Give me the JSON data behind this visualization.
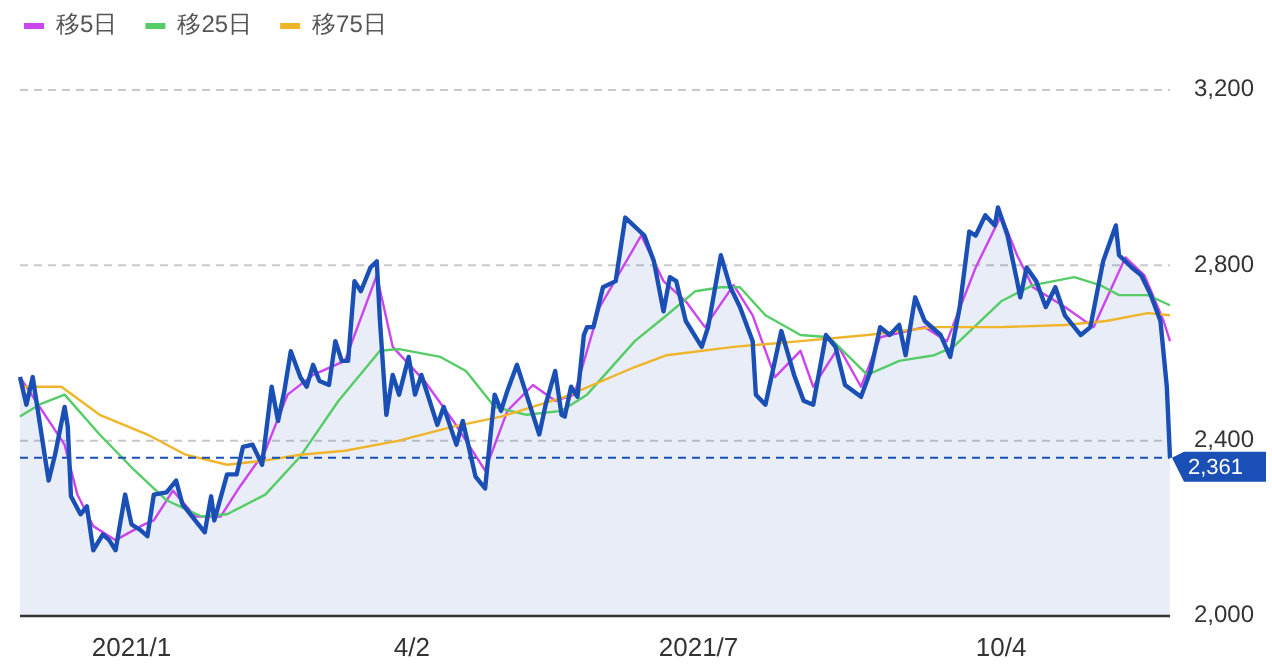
{
  "chart_data": {
    "type": "line",
    "xlim": [
      "2020-11-30",
      "2021-11-26"
    ],
    "ylim": [
      2000,
      3200
    ],
    "xticks": [
      {
        "value": "2021-01-04",
        "label": "2021/1"
      },
      {
        "value": "2021-04-02",
        "label": "4/2"
      },
      {
        "value": "2021-07-01",
        "label": "2021/7"
      },
      {
        "value": "2021-10-04",
        "label": "10/4"
      }
    ],
    "yticks": [
      {
        "value": 2000,
        "label": "2,000"
      },
      {
        "value": 2400,
        "label": "2,400"
      },
      {
        "value": 2800,
        "label": "2,800"
      },
      {
        "value": 3200,
        "label": "3,200"
      }
    ],
    "grid": "y",
    "legend": "top left",
    "ref_lines": [
      {
        "axis": "y",
        "value": 2361,
        "label": "2,361",
        "color": "#1a4fb5",
        "line_style": "dashed"
      }
    ],
    "series": [
      {
        "name": "移5日",
        "color": "#cc44ee",
        "x": [
          "2020-11-30",
          "2020-12-14",
          "2020-12-18",
          "2020-12-23",
          "2020-12-30",
          "2021-01-08",
          "2021-01-11",
          "2021-01-17",
          "2021-01-24",
          "2021-02-01",
          "2021-02-07",
          "2021-02-15",
          "2021-02-22",
          "2021-03-02",
          "2021-03-12",
          "2021-03-22",
          "2021-03-27",
          "2021-04-06",
          "2021-04-15",
          "2021-04-25",
          "2021-05-02",
          "2021-05-10",
          "2021-05-17",
          "2021-05-23",
          "2021-05-31",
          "2021-06-13",
          "2021-06-20",
          "2021-06-27",
          "2021-07-03",
          "2021-07-12",
          "2021-07-18",
          "2021-07-25",
          "2021-08-02",
          "2021-08-06",
          "2021-08-14",
          "2021-08-21",
          "2021-08-27",
          "2021-09-10",
          "2021-09-17",
          "2021-09-26",
          "2021-10-04",
          "2021-10-09",
          "2021-10-14",
          "2021-10-24",
          "2021-11-02",
          "2021-11-12",
          "2021-11-18",
          "2021-11-24",
          "2021-11-26"
        ],
        "values": [
          2545,
          2391,
          2277,
          2205,
          2173,
          2209,
          2218,
          2286,
          2227,
          2227,
          2295,
          2377,
          2505,
          2550,
          2582,
          2777,
          2614,
          2536,
          2445,
          2332,
          2468,
          2527,
          2491,
          2505,
          2705,
          2868,
          2764,
          2718,
          2659,
          2755,
          2686,
          2545,
          2605,
          2523,
          2614,
          2523,
          2636,
          2659,
          2627,
          2795,
          2914,
          2823,
          2750,
          2705,
          2659,
          2818,
          2777,
          2673,
          2627
        ]
      },
      {
        "name": "移25日",
        "color": "#55cc66",
        "x": [
          "2020-11-30",
          "2020-12-06",
          "2020-12-14",
          "2020-12-25",
          "2021-01-05",
          "2021-01-15",
          "2021-01-26",
          "2021-02-03",
          "2021-02-15",
          "2021-02-26",
          "2021-03-10",
          "2021-03-23",
          "2021-03-29",
          "2021-04-11",
          "2021-04-19",
          "2021-04-28",
          "2021-05-08",
          "2021-05-19",
          "2021-05-27",
          "2021-06-11",
          "2021-06-21",
          "2021-06-30",
          "2021-07-08",
          "2021-07-14",
          "2021-07-22",
          "2021-08-02",
          "2021-08-11",
          "2021-08-23",
          "2021-09-02",
          "2021-09-13",
          "2021-09-19",
          "2021-10-04",
          "2021-10-14",
          "2021-10-27",
          "2021-11-04",
          "2021-11-10",
          "2021-11-19",
          "2021-11-26"
        ],
        "values": [
          2455,
          2482,
          2505,
          2414,
          2332,
          2264,
          2227,
          2232,
          2277,
          2364,
          2491,
          2605,
          2609,
          2591,
          2559,
          2477,
          2459,
          2468,
          2505,
          2627,
          2686,
          2741,
          2750,
          2750,
          2686,
          2641,
          2636,
          2550,
          2582,
          2595,
          2614,
          2718,
          2755,
          2773,
          2755,
          2732,
          2732,
          2709
        ]
      },
      {
        "name": "移75日",
        "color": "#f0b429",
        "x": [
          "2020-11-30",
          "2020-12-13",
          "2020-12-25",
          "2021-01-09",
          "2021-01-21",
          "2021-02-03",
          "2021-02-15",
          "2021-02-26",
          "2021-03-12",
          "2021-03-29",
          "2021-04-15",
          "2021-04-30",
          "2021-05-20",
          "2021-06-11",
          "2021-06-21",
          "2021-07-12",
          "2021-08-02",
          "2021-08-23",
          "2021-09-13",
          "2021-10-04",
          "2021-10-24",
          "2021-11-06",
          "2021-11-19",
          "2021-11-26"
        ],
        "values": [
          2523,
          2523,
          2459,
          2414,
          2368,
          2345,
          2355,
          2368,
          2377,
          2400,
          2432,
          2455,
          2500,
          2568,
          2595,
          2614,
          2627,
          2641,
          2659,
          2659,
          2664,
          2673,
          2691,
          2686
        ]
      },
      {
        "type": "area",
        "color": "#1a4fb5",
        "x": [
          "2020-11-30",
          "2020-12-02",
          "2020-12-04",
          "2020-12-08",
          "2020-12-09",
          "2020-12-11",
          "2020-12-14",
          "2020-12-15",
          "2020-12-16",
          "2020-12-19",
          "2020-12-21",
          "2020-12-23",
          "2020-12-26",
          "2020-12-28",
          "2020-12-30",
          "2021-01-02",
          "2021-01-04",
          "2021-01-07",
          "2021-01-09",
          "2021-01-11",
          "2021-01-15",
          "2021-01-18",
          "2021-01-20",
          "2021-01-24",
          "2021-01-27",
          "2021-01-29",
          "2021-01-30",
          "2021-02-03",
          "2021-02-06",
          "2021-02-08",
          "2021-02-11",
          "2021-02-14",
          "2021-02-17",
          "2021-02-19",
          "2021-02-21",
          "2021-02-23",
          "2021-02-26",
          "2021-02-28",
          "2021-03-02",
          "2021-03-04",
          "2021-03-07",
          "2021-03-09",
          "2021-03-11",
          "2021-03-13",
          "2021-03-15",
          "2021-03-17",
          "2021-03-20",
          "2021-03-22",
          "2021-03-23",
          "2021-03-25",
          "2021-03-27",
          "2021-03-29",
          "2021-04-01",
          "2021-04-03",
          "2021-04-05",
          "2021-04-06",
          "2021-04-10",
          "2021-04-12",
          "2021-04-16",
          "2021-04-18",
          "2021-04-22",
          "2021-04-25",
          "2021-04-28",
          "2021-04-30",
          "2021-05-02",
          "2021-05-05",
          "2021-05-08",
          "2021-05-12",
          "2021-05-14",
          "2021-05-17",
          "2021-05-19",
          "2021-05-20",
          "2021-05-22",
          "2021-05-24",
          "2021-05-26",
          "2021-05-27",
          "2021-05-29",
          "2021-06-01",
          "2021-06-05",
          "2021-06-08",
          "2021-06-14",
          "2021-06-17",
          "2021-06-20",
          "2021-06-22",
          "2021-06-24",
          "2021-06-27",
          "2021-07-02",
          "2021-07-04",
          "2021-07-08",
          "2021-07-11",
          "2021-07-14",
          "2021-07-18",
          "2021-07-19",
          "2021-07-22",
          "2021-07-27",
          "2021-07-31",
          "2021-08-03",
          "2021-08-06",
          "2021-08-10",
          "2021-08-13",
          "2021-08-16",
          "2021-08-21",
          "2021-08-24",
          "2021-08-27",
          "2021-08-30",
          "2021-09-02",
          "2021-09-04",
          "2021-09-07",
          "2021-09-10",
          "2021-09-15",
          "2021-09-18",
          "2021-09-21",
          "2021-09-24",
          "2021-09-26",
          "2021-09-29",
          "2021-10-02",
          "2021-10-03",
          "2021-10-06",
          "2021-10-09",
          "2021-10-10",
          "2021-10-12",
          "2021-10-15",
          "2021-10-18",
          "2021-10-21",
          "2021-10-24",
          "2021-10-29",
          "2021-11-01",
          "2021-11-05",
          "2021-11-09",
          "2021-11-10",
          "2021-11-14",
          "2021-11-17",
          "2021-11-20",
          "2021-11-23",
          "2021-11-25",
          "2021-11-26"
        ],
        "values": [
          2545,
          2482,
          2545,
          2355,
          2309,
          2368,
          2477,
          2432,
          2273,
          2232,
          2250,
          2150,
          2186,
          2173,
          2150,
          2277,
          2209,
          2195,
          2182,
          2277,
          2282,
          2309,
          2255,
          2218,
          2191,
          2273,
          2218,
          2323,
          2323,
          2386,
          2391,
          2345,
          2523,
          2445,
          2514,
          2604,
          2545,
          2523,
          2573,
          2536,
          2527,
          2627,
          2582,
          2582,
          2764,
          2741,
          2795,
          2809,
          2673,
          2459,
          2550,
          2505,
          2591,
          2505,
          2550,
          2527,
          2436,
          2477,
          2391,
          2445,
          2318,
          2291,
          2505,
          2468,
          2514,
          2573,
          2505,
          2414,
          2482,
          2559,
          2459,
          2455,
          2523,
          2500,
          2641,
          2659,
          2659,
          2750,
          2764,
          2909,
          2868,
          2809,
          2695,
          2773,
          2764,
          2673,
          2614,
          2659,
          2823,
          2750,
          2705,
          2627,
          2505,
          2482,
          2650,
          2550,
          2491,
          2482,
          2641,
          2614,
          2527,
          2500,
          2559,
          2659,
          2641,
          2664,
          2595,
          2727,
          2673,
          2641,
          2591,
          2705,
          2877,
          2868,
          2914,
          2891,
          2932,
          2868,
          2764,
          2727,
          2795,
          2764,
          2705,
          2750,
          2686,
          2641,
          2659,
          2809,
          2891,
          2823,
          2795,
          2777,
          2732,
          2673,
          2523,
          2361
        ]
      }
    ]
  }
}
